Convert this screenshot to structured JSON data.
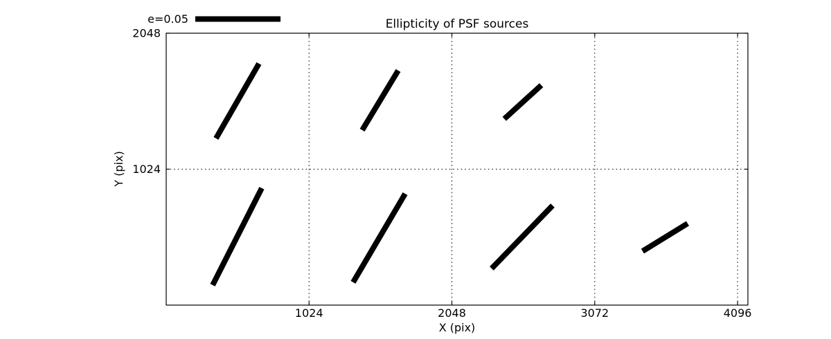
{
  "chart_data": {
    "type": "quiver",
    "description": "Whisker plot of PSF source ellipticity: unoriented sticks centered on a grid of positions, stick length proportional to ellipticity e",
    "title": "Ellipticity of PSF sources",
    "xlabel": "X (pix)",
    "ylabel": "Y (pix)",
    "xlim": [
      0,
      4170
    ],
    "ylim": [
      0,
      2048
    ],
    "grid": {
      "visible": true,
      "linestyle": "dotted",
      "color": "#000000"
    },
    "xticks": [
      {
        "value": 1024,
        "label": "1024"
      },
      {
        "value": 2048,
        "label": "2048"
      },
      {
        "value": 3072,
        "label": "3072"
      },
      {
        "value": 4096,
        "label": "4096"
      }
    ],
    "yticks": [
      {
        "value": 1024,
        "label": "1024"
      },
      {
        "value": 2048,
        "label": "2048"
      }
    ],
    "legend": {
      "label": "e=0.05",
      "e_value": 0.05,
      "scale_length_data_units": 611
    },
    "whisker_color": "#000000",
    "background_color": "#ffffff",
    "whiskers": [
      {
        "x1": 357,
        "y1": 1256,
        "x2": 665,
        "y2": 1819
      },
      {
        "x1": 1405,
        "y1": 1318,
        "x2": 1663,
        "y2": 1767
      },
      {
        "x1": 2424,
        "y1": 1403,
        "x2": 2689,
        "y2": 1656
      },
      {
        "x1": 333,
        "y1": 151,
        "x2": 685,
        "y2": 881
      },
      {
        "x1": 1340,
        "y1": 172,
        "x2": 1713,
        "y2": 839
      },
      {
        "x1": 2333,
        "y1": 276,
        "x2": 2770,
        "y2": 750
      },
      {
        "x1": 3415,
        "y1": 406,
        "x2": 3738,
        "y2": 615
      }
    ]
  }
}
